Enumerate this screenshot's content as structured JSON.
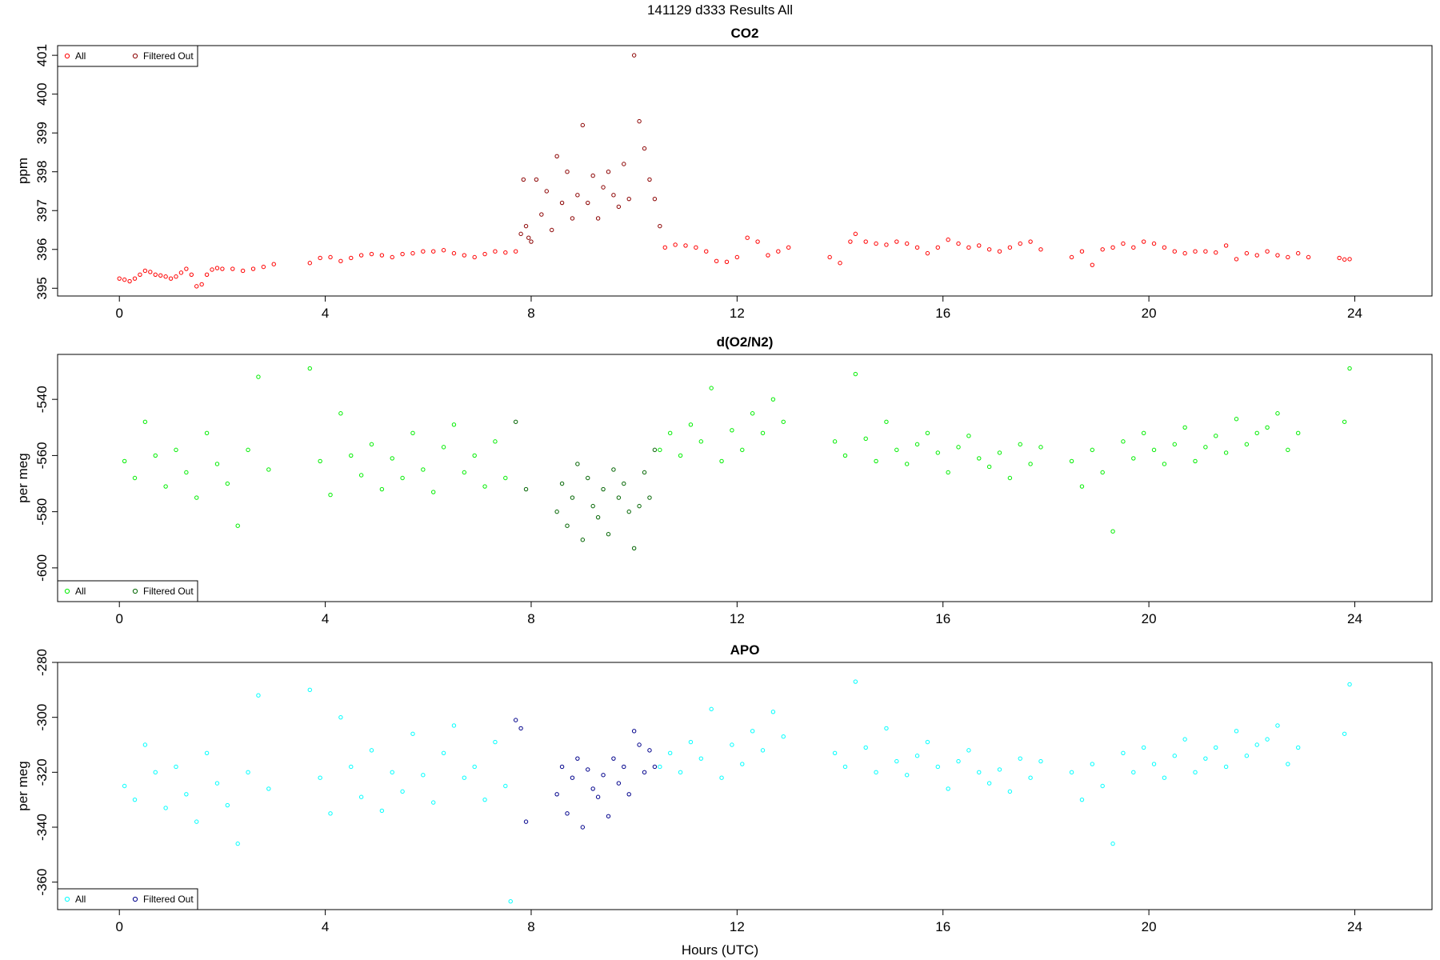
{
  "figure": {
    "title": "141129   d333   Results All",
    "xlabel": "Hours (UTC)"
  },
  "colors": {
    "co2_all": "#ff0000",
    "co2_filtered": "#8b0000",
    "o2_all": "#00ee00",
    "o2_filtered": "#006400",
    "apo_all": "#00ffff",
    "apo_filtered": "#00008b"
  },
  "chart_data": [
    {
      "type": "scatter",
      "title": "CO2",
      "xlabel": "",
      "ylabel": "ppm",
      "xlim": [
        -1.2,
        25.5
      ],
      "ylim": [
        394.8,
        401.25
      ],
      "xticks": [
        0,
        4,
        8,
        12,
        16,
        20,
        24
      ],
      "yticks": [
        395,
        396,
        397,
        398,
        399,
        400,
        401
      ],
      "ytick_labels": [
        "395",
        "396",
        "397",
        "398",
        "399",
        "400",
        "401"
      ],
      "grid": false,
      "legend": {
        "position": "top-left",
        "entries": [
          "All",
          "Filtered Out"
        ]
      },
      "series": [
        {
          "name": "All",
          "color": "#ff0000",
          "x": [
            0.0,
            0.1,
            0.2,
            0.3,
            0.4,
            0.5,
            0.6,
            0.7,
            0.8,
            0.9,
            1.0,
            1.1,
            1.2,
            1.3,
            1.4,
            1.5,
            1.6,
            1.7,
            1.8,
            1.9,
            2.0,
            2.2,
            2.4,
            2.6,
            2.8,
            3.0,
            3.7,
            3.9,
            4.1,
            4.3,
            4.5,
            4.7,
            4.9,
            5.1,
            5.3,
            5.5,
            5.7,
            5.9,
            6.1,
            6.3,
            6.5,
            6.7,
            6.9,
            7.1,
            7.3,
            7.5,
            7.7,
            10.6,
            10.8,
            11.0,
            11.2,
            11.4,
            11.6,
            11.8,
            12.0,
            12.2,
            12.4,
            12.6,
            12.8,
            13.0,
            13.8,
            14.0,
            14.2,
            14.3,
            14.5,
            14.7,
            14.9,
            15.1,
            15.3,
            15.5,
            15.7,
            15.9,
            16.1,
            16.3,
            16.5,
            16.7,
            16.9,
            17.1,
            17.3,
            17.5,
            17.7,
            17.9,
            18.5,
            18.7,
            18.9,
            19.1,
            19.3,
            19.5,
            19.7,
            19.9,
            20.1,
            20.3,
            20.5,
            20.7,
            20.9,
            21.1,
            21.3,
            21.5,
            21.7,
            21.9,
            22.1,
            22.3,
            22.5,
            22.7,
            22.9,
            23.1,
            23.7,
            23.8,
            23.9
          ],
          "y": [
            395.25,
            395.22,
            395.18,
            395.25,
            395.35,
            395.45,
            395.42,
            395.35,
            395.33,
            395.3,
            395.25,
            395.3,
            395.4,
            395.5,
            395.35,
            395.05,
            395.1,
            395.35,
            395.48,
            395.52,
            395.5,
            395.5,
            395.45,
            395.5,
            395.55,
            395.62,
            395.65,
            395.78,
            395.8,
            395.7,
            395.78,
            395.85,
            395.88,
            395.85,
            395.8,
            395.88,
            395.9,
            395.95,
            395.95,
            395.98,
            395.9,
            395.85,
            395.8,
            395.88,
            395.95,
            395.92,
            395.95,
            396.05,
            396.12,
            396.1,
            396.05,
            395.95,
            395.7,
            395.68,
            395.8,
            396.3,
            396.2,
            395.85,
            395.95,
            396.05,
            395.8,
            395.65,
            396.2,
            396.4,
            396.2,
            396.15,
            396.12,
            396.2,
            396.15,
            396.05,
            395.9,
            396.05,
            396.25,
            396.15,
            396.05,
            396.1,
            396.0,
            395.95,
            396.05,
            396.15,
            396.2,
            396.0,
            395.8,
            395.95,
            395.6,
            396.0,
            396.05,
            396.15,
            396.05,
            396.2,
            396.15,
            396.05,
            395.95,
            395.9,
            395.95,
            395.95,
            395.92,
            396.1,
            395.75,
            395.9,
            395.85,
            395.95,
            395.85,
            395.8,
            395.9,
            395.8,
            395.78,
            395.74,
            395.75
          ]
        },
        {
          "name": "Filtered Out",
          "color": "#8b0000",
          "x": [
            7.8,
            7.85,
            7.9,
            7.95,
            8.0,
            8.1,
            8.2,
            8.3,
            8.4,
            8.5,
            8.6,
            8.7,
            8.8,
            8.9,
            9.0,
            9.1,
            9.2,
            9.3,
            9.4,
            9.5,
            9.6,
            9.7,
            9.8,
            9.9,
            10.0,
            10.1,
            10.2,
            10.3,
            10.4,
            10.5
          ],
          "y": [
            396.4,
            397.8,
            396.6,
            396.3,
            396.2,
            397.8,
            396.9,
            397.5,
            396.5,
            398.4,
            397.2,
            398.0,
            396.8,
            397.4,
            399.2,
            397.2,
            397.9,
            396.8,
            397.6,
            398.0,
            397.4,
            397.1,
            398.2,
            397.3,
            401.0,
            399.3,
            398.6,
            397.8,
            397.3,
            396.6
          ]
        }
      ]
    },
    {
      "type": "scatter",
      "title": "d(O2/N2)",
      "xlabel": "",
      "ylabel": "per meg",
      "xlim": [
        -1.2,
        25.5
      ],
      "ylim": [
        -612,
        -524
      ],
      "xticks": [
        0,
        4,
        8,
        12,
        16,
        20,
        24
      ],
      "yticks": [
        -540,
        -560,
        -580,
        -600
      ],
      "ytick_labels": [
        "-540",
        "-560",
        "-580",
        "-600"
      ],
      "grid": false,
      "legend": {
        "position": "bottom-left",
        "entries": [
          "All",
          "Filtered Out"
        ]
      },
      "series": [
        {
          "name": "All",
          "color": "#00ee00",
          "x": [
            0.1,
            0.3,
            0.5,
            0.7,
            0.9,
            1.1,
            1.3,
            1.5,
            1.7,
            1.9,
            2.1,
            2.3,
            2.5,
            2.7,
            2.9,
            3.7,
            3.9,
            4.1,
            4.3,
            4.5,
            4.7,
            4.9,
            5.1,
            5.3,
            5.5,
            5.7,
            5.9,
            6.1,
            6.3,
            6.5,
            6.7,
            6.9,
            7.1,
            7.3,
            7.5,
            10.5,
            10.7,
            10.9,
            11.1,
            11.3,
            11.5,
            11.7,
            11.9,
            12.1,
            12.3,
            12.5,
            12.7,
            12.9,
            13.9,
            14.1,
            14.3,
            14.5,
            14.7,
            14.9,
            15.1,
            15.3,
            15.5,
            15.7,
            15.9,
            16.1,
            16.3,
            16.5,
            16.7,
            16.9,
            17.1,
            17.3,
            17.5,
            17.7,
            17.9,
            18.5,
            18.7,
            18.9,
            19.1,
            19.3,
            19.5,
            19.7,
            19.9,
            20.1,
            20.3,
            20.5,
            20.7,
            20.9,
            21.1,
            21.3,
            21.5,
            21.7,
            21.9,
            22.1,
            22.3,
            22.5,
            22.7,
            22.9,
            23.8,
            23.9
          ],
          "y": [
            -562,
            -568,
            -548,
            -560,
            -571,
            -558,
            -566,
            -575,
            -552,
            -563,
            -570,
            -585,
            -558,
            -532,
            -565,
            -529,
            -562,
            -574,
            -545,
            -560,
            -567,
            -556,
            -572,
            -561,
            -568,
            -552,
            -565,
            -573,
            -557,
            -549,
            -566,
            -560,
            -571,
            -555,
            -568,
            -558,
            -552,
            -560,
            -549,
            -555,
            -536,
            -562,
            -551,
            -558,
            -545,
            -552,
            -540,
            -548,
            -555,
            -560,
            -531,
            -554,
            -562,
            -548,
            -558,
            -563,
            -556,
            -552,
            -559,
            -566,
            -557,
            -553,
            -561,
            -564,
            -559,
            -568,
            -556,
            -563,
            -557,
            -562,
            -571,
            -558,
            -566,
            -587,
            -555,
            -561,
            -552,
            -558,
            -563,
            -556,
            -550,
            -562,
            -557,
            -553,
            -559,
            -547,
            -556,
            -552,
            -550,
            -545,
            -558,
            -552,
            -548,
            -529
          ]
        },
        {
          "name": "Filtered Out",
          "color": "#006400",
          "x": [
            7.7,
            7.9,
            8.5,
            8.6,
            8.7,
            8.8,
            8.9,
            9.0,
            9.1,
            9.2,
            9.3,
            9.4,
            9.5,
            9.6,
            9.7,
            9.8,
            9.9,
            10.0,
            10.1,
            10.2,
            10.3,
            10.4
          ],
          "y": [
            -548,
            -572,
            -580,
            -570,
            -585,
            -575,
            -563,
            -590,
            -568,
            -578,
            -582,
            -572,
            -588,
            -565,
            -575,
            -570,
            -580,
            -593,
            -578,
            -566,
            -575,
            -558
          ]
        }
      ]
    },
    {
      "type": "scatter",
      "title": "APO",
      "xlabel": "Hours (UTC)",
      "ylabel": "per meg",
      "xlim": [
        -1.2,
        25.5
      ],
      "ylim": [
        -370,
        -280
      ],
      "xticks": [
        0,
        4,
        8,
        12,
        16,
        20,
        24
      ],
      "yticks": [
        -280,
        -300,
        -320,
        -340,
        -360
      ],
      "ytick_labels": [
        "-280",
        "-300",
        "-320",
        "-340",
        "-360"
      ],
      "grid": false,
      "legend": {
        "position": "bottom-left",
        "entries": [
          "All",
          "Filtered Out"
        ]
      },
      "series": [
        {
          "name": "All",
          "color": "#00ffff",
          "x": [
            0.1,
            0.3,
            0.5,
            0.7,
            0.9,
            1.1,
            1.3,
            1.5,
            1.7,
            1.9,
            2.1,
            2.3,
            2.5,
            2.7,
            2.9,
            3.7,
            3.9,
            4.1,
            4.3,
            4.5,
            4.7,
            4.9,
            5.1,
            5.3,
            5.5,
            5.7,
            5.9,
            6.1,
            6.3,
            6.5,
            6.7,
            6.9,
            7.1,
            7.3,
            7.5,
            7.6,
            10.5,
            10.7,
            10.9,
            11.1,
            11.3,
            11.5,
            11.7,
            11.9,
            12.1,
            12.3,
            12.5,
            12.7,
            12.9,
            13.9,
            14.1,
            14.3,
            14.5,
            14.7,
            14.9,
            15.1,
            15.3,
            15.5,
            15.7,
            15.9,
            16.1,
            16.3,
            16.5,
            16.7,
            16.9,
            17.1,
            17.3,
            17.5,
            17.7,
            17.9,
            18.5,
            18.7,
            18.9,
            19.1,
            19.3,
            19.5,
            19.7,
            19.9,
            20.1,
            20.3,
            20.5,
            20.7,
            20.9,
            21.1,
            21.3,
            21.5,
            21.7,
            21.9,
            22.1,
            22.3,
            22.5,
            22.7,
            22.9,
            23.8,
            23.9
          ],
          "y": [
            -325,
            -330,
            -310,
            -320,
            -333,
            -318,
            -328,
            -338,
            -313,
            -324,
            -332,
            -346,
            -320,
            -292,
            -326,
            -290,
            -322,
            -335,
            -300,
            -318,
            -329,
            -312,
            -334,
            -320,
            -327,
            -306,
            -321,
            -331,
            -313,
            -303,
            -322,
            -318,
            -330,
            -309,
            -325,
            -367,
            -318,
            -313,
            -320,
            -309,
            -315,
            -297,
            -322,
            -310,
            -317,
            -305,
            -312,
            -298,
            -307,
            -313,
            -318,
            -287,
            -311,
            -320,
            -304,
            -316,
            -321,
            -314,
            -309,
            -318,
            -326,
            -316,
            -312,
            -320,
            -324,
            -319,
            -327,
            -315,
            -322,
            -316,
            -320,
            -330,
            -317,
            -325,
            -346,
            -313,
            -320,
            -311,
            -317,
            -322,
            -314,
            -308,
            -320,
            -315,
            -311,
            -318,
            -305,
            -314,
            -310,
            -308,
            -303,
            -317,
            -311,
            -306,
            -288
          ]
        },
        {
          "name": "Filtered Out",
          "color": "#00008b",
          "x": [
            7.7,
            7.8,
            7.9,
            8.5,
            8.6,
            8.7,
            8.8,
            8.9,
            9.0,
            9.1,
            9.2,
            9.3,
            9.4,
            9.5,
            9.6,
            9.7,
            9.8,
            9.9,
            10.0,
            10.1,
            10.2,
            10.3,
            10.4
          ],
          "y": [
            -301,
            -304,
            -338,
            -328,
            -318,
            -335,
            -322,
            -315,
            -340,
            -319,
            -326,
            -329,
            -321,
            -336,
            -315,
            -324,
            -318,
            -328,
            -305,
            -310,
            -320,
            -312,
            -318
          ]
        }
      ]
    }
  ]
}
